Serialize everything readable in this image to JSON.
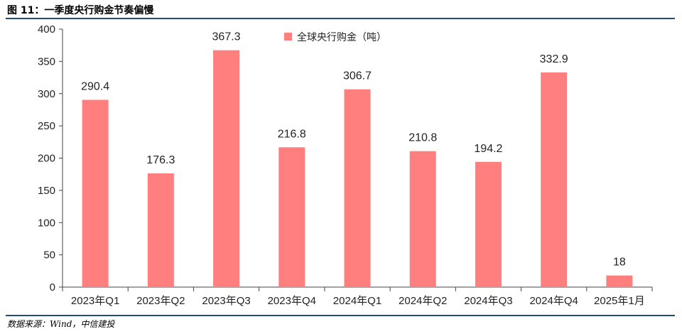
{
  "figure": {
    "title": "图 11：一季度央行购金节奏偏慢",
    "source": "数据来源：Wind，中信建投"
  },
  "chart_data": {
    "type": "bar",
    "categories": [
      "2023年Q1",
      "2023年Q2",
      "2023年Q3",
      "2023年Q4",
      "2024年Q1",
      "2024年Q2",
      "2024年Q3",
      "2024年Q4",
      "2025年1月"
    ],
    "series": [
      {
        "name": "全球央行购金（吨）",
        "values": [
          290.4,
          176.3,
          367.3,
          216.8,
          306.7,
          210.8,
          194.2,
          332.9,
          18
        ],
        "color": "#ff7f7f"
      }
    ],
    "data_labels": [
      "290.4",
      "176.3",
      "367.3",
      "216.8",
      "306.7",
      "210.8",
      "194.2",
      "332.9",
      "18"
    ],
    "ylim": [
      0,
      400
    ],
    "yticks": [
      0,
      50,
      100,
      150,
      200,
      250,
      300,
      350,
      400
    ],
    "xlabel": "",
    "ylabel": "",
    "grid": false,
    "legend_position": "top-center"
  }
}
